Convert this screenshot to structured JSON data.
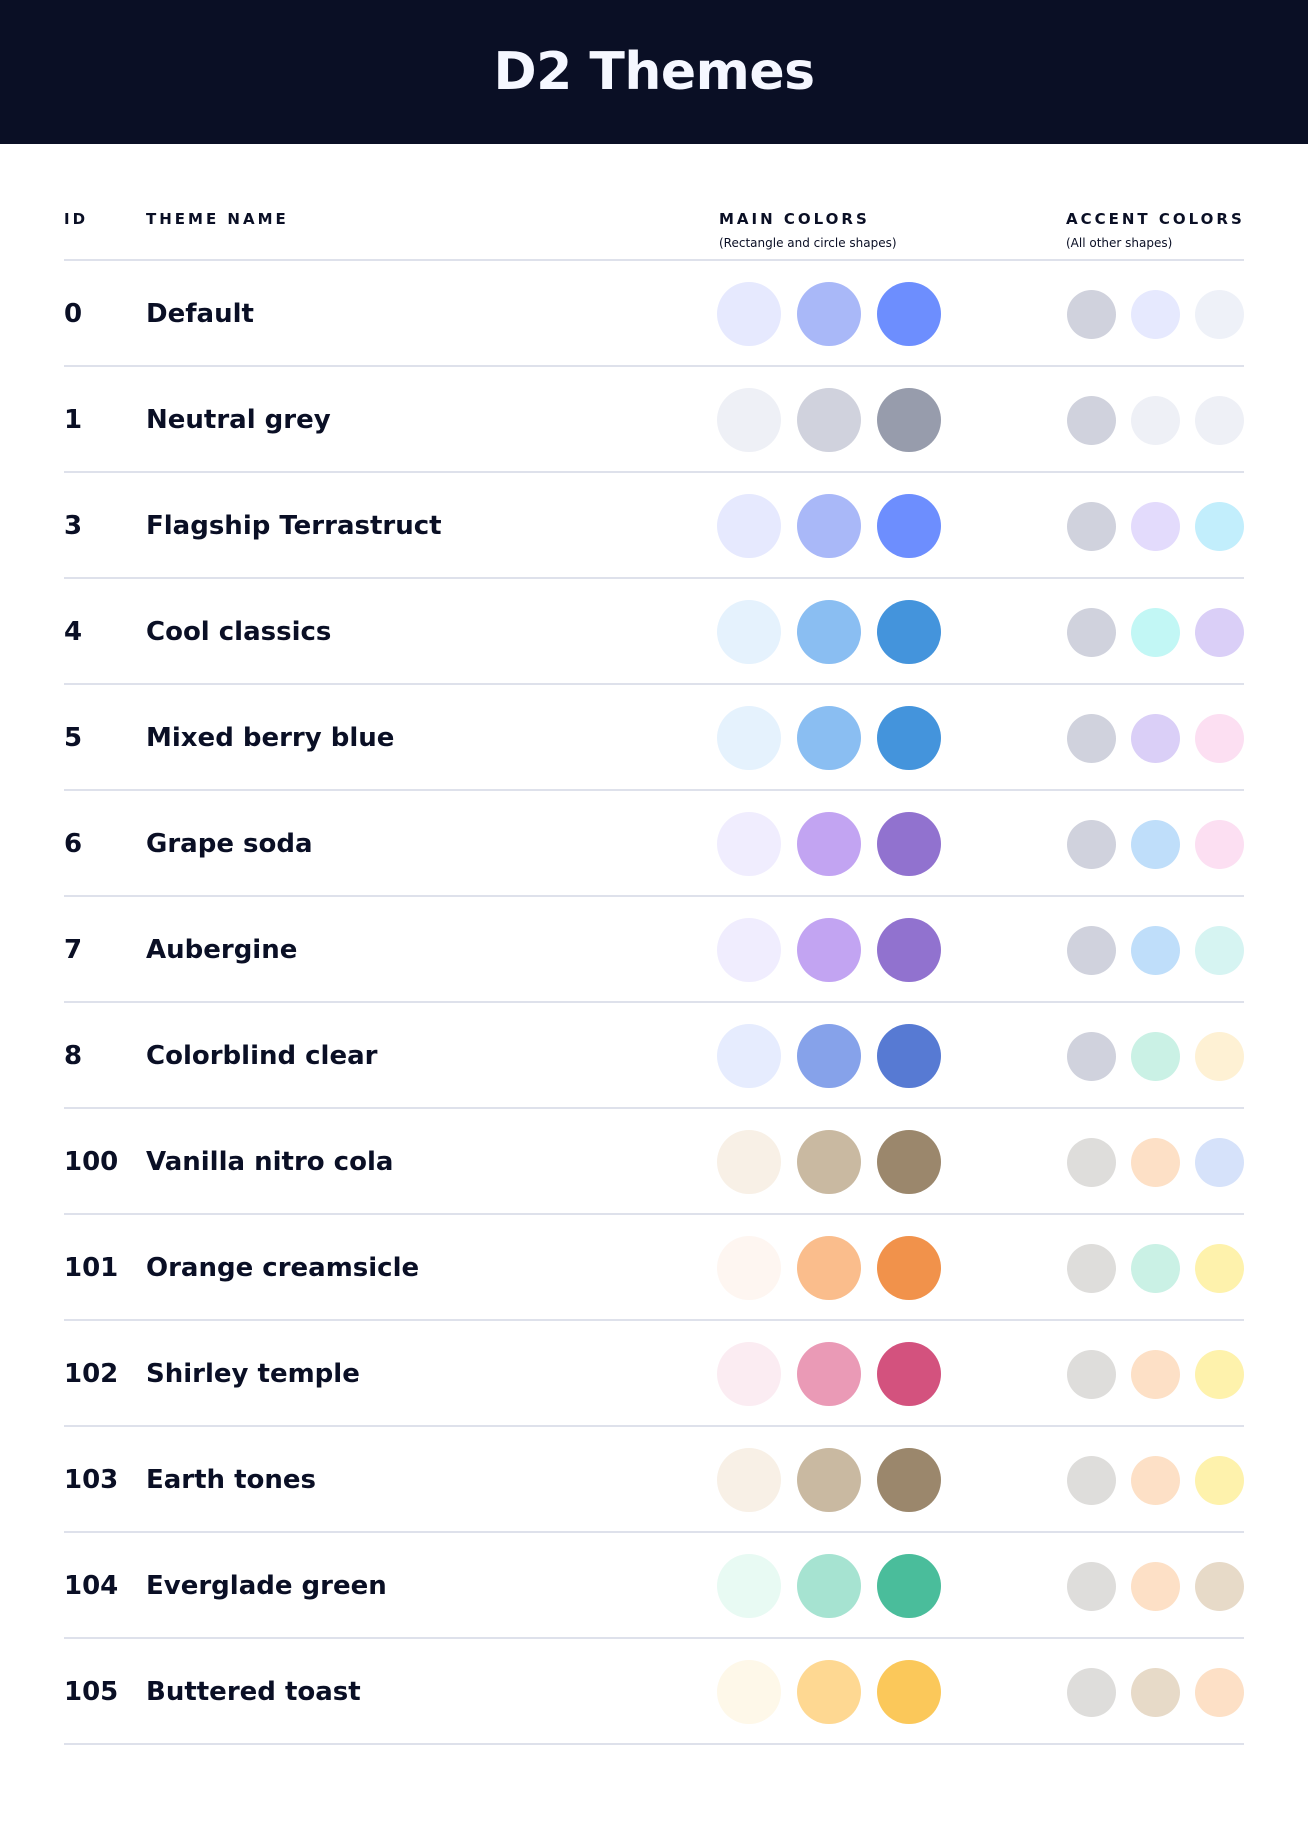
{
  "title": "D2 Themes",
  "columns": {
    "id": "ID",
    "name": "THEME NAME",
    "main": "MAIN COLORS",
    "main_sub": "(Rectangle and circle shapes)",
    "accent": "ACCENT COLORS",
    "accent_sub": "(All other shapes)"
  },
  "themes": [
    {
      "id": "0",
      "name": "Default",
      "main": [
        "#E6E9FE",
        "#A9B8F8",
        "#6D8EFE"
      ],
      "accent": [
        "#D0D2DD",
        "#E6E9FE",
        "#EEF1F8"
      ]
    },
    {
      "id": "1",
      "name": "Neutral grey",
      "main": [
        "#EEF0F6",
        "#D0D2DD",
        "#979CAC"
      ],
      "accent": [
        "#D0D2DD",
        "#EEF0F6",
        "#EEF0F6"
      ]
    },
    {
      "id": "3",
      "name": "Flagship Terrastruct",
      "main": [
        "#E6E9FE",
        "#A9B8F8",
        "#6D8EFE"
      ],
      "accent": [
        "#D0D2DD",
        "#E3DBFC",
        "#C2EEFC"
      ]
    },
    {
      "id": "4",
      "name": "Cool classics",
      "main": [
        "#E5F2FD",
        "#8ABEF2",
        "#4494DC"
      ],
      "accent": [
        "#D0D2DD",
        "#C2F7F5",
        "#DACFF7"
      ]
    },
    {
      "id": "5",
      "name": "Mixed berry blue",
      "main": [
        "#E5F2FD",
        "#8ABEF2",
        "#4494DC"
      ],
      "accent": [
        "#D0D2DD",
        "#DACFF7",
        "#FCDFF2"
      ]
    },
    {
      "id": "6",
      "name": "Grape soda",
      "main": [
        "#F0EDFE",
        "#C2A4F2",
        "#9172CF"
      ],
      "accent": [
        "#D0D2DD",
        "#BFDEFA",
        "#FCDFF2"
      ]
    },
    {
      "id": "7",
      "name": "Aubergine",
      "main": [
        "#F0EDFE",
        "#C2A4F2",
        "#9172CF"
      ],
      "accent": [
        "#D0D2DD",
        "#BFDEFA",
        "#D6F4F2"
      ]
    },
    {
      "id": "8",
      "name": "Colorblind clear",
      "main": [
        "#E6ECFE",
        "#86A2EA",
        "#577AD3"
      ],
      "accent": [
        "#D0D2DD",
        "#CAF1E5",
        "#FEF1D4"
      ]
    },
    {
      "id": "100",
      "name": "Vanilla nitro cola",
      "main": [
        "#F8F0E6",
        "#C9B9A1",
        "#9B876C"
      ],
      "accent": [
        "#DEDDDB",
        "#FDE0C6",
        "#D6E2FA"
      ]
    },
    {
      "id": "101",
      "name": "Orange creamsicle",
      "main": [
        "#FEF6F1",
        "#FABD8C",
        "#F1924B"
      ],
      "accent": [
        "#DEDDDB",
        "#CAF1E5",
        "#FEF2AC"
      ]
    },
    {
      "id": "102",
      "name": "Shirley temple",
      "main": [
        "#FBECF2",
        "#EA9AB6",
        "#D3527E"
      ],
      "accent": [
        "#DEDDDB",
        "#FDE0C6",
        "#FEF2AC"
      ]
    },
    {
      "id": "103",
      "name": "Earth tones",
      "main": [
        "#F8F0E6",
        "#C9B9A1",
        "#9B876C"
      ],
      "accent": [
        "#DEDDDB",
        "#FDE0C6",
        "#FEF2AC"
      ]
    },
    {
      "id": "104",
      "name": "Everglade green",
      "main": [
        "#E8FAF3",
        "#A6E3D1",
        "#4ABD9B"
      ],
      "accent": [
        "#DEDDDB",
        "#FDE0C6",
        "#E7DAC8"
      ]
    },
    {
      "id": "105",
      "name": "Buttered toast",
      "main": [
        "#FEF8E9",
        "#FED892",
        "#FBC85A"
      ],
      "accent": [
        "#DEDDDB",
        "#E7DAC8",
        "#FDE0C6"
      ]
    }
  ]
}
